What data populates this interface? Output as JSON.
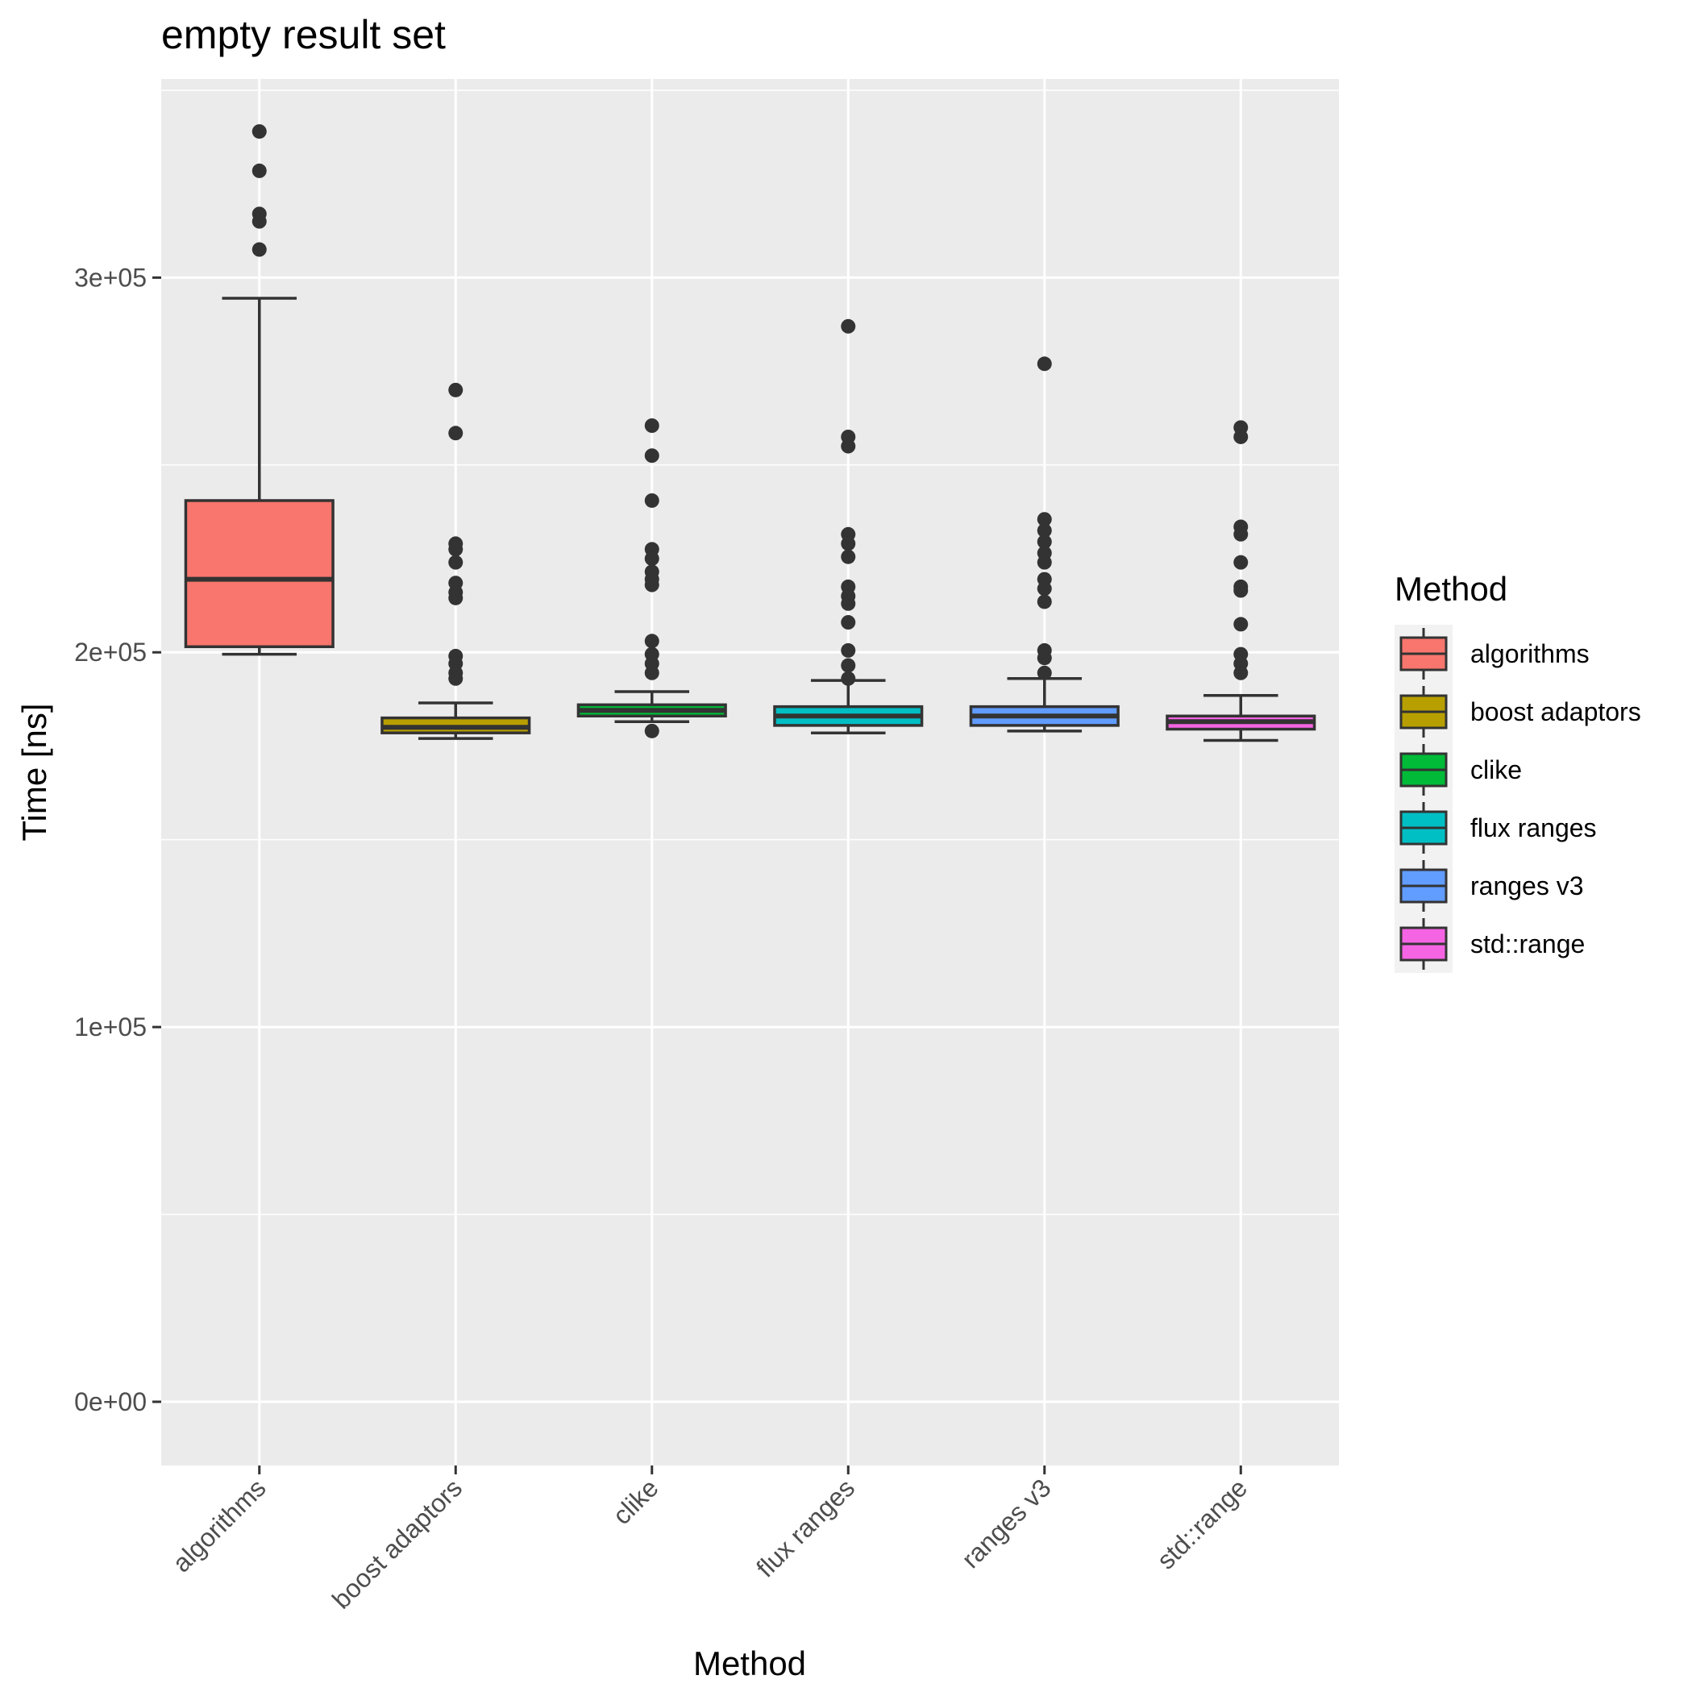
{
  "chart_data": {
    "type": "boxplot",
    "title": "empty result set",
    "xlabel": "Method",
    "ylabel": "Time [ns]",
    "ylim": [
      -17000,
      353000
    ],
    "y_ticks": [
      0,
      100000,
      200000,
      300000
    ],
    "y_tick_labels": [
      "0e+00",
      "1e+05",
      "2e+05",
      "3e+05"
    ],
    "grid": true,
    "legend": {
      "title": "Method",
      "position": "right"
    },
    "categories": [
      "algorithms",
      "boost adaptors",
      "clike",
      "flux ranges",
      "ranges v3",
      "std::range"
    ],
    "series": [
      {
        "name": "algorithms",
        "color": "#F8766D",
        "whisker_low": 199500,
        "q1": 201500,
        "median": 219500,
        "q3": 240500,
        "whisker_high": 294500,
        "outliers": [
          339000,
          328500,
          317000,
          315000,
          307500
        ]
      },
      {
        "name": "boost adaptors",
        "color": "#B79F00",
        "whisker_low": 177000,
        "q1": 178500,
        "median": 180000,
        "q3": 182500,
        "whisker_high": 186500,
        "outliers": [
          270000,
          258500,
          229000,
          227500,
          224000,
          218500,
          216000,
          214500,
          199000,
          197000,
          194500,
          193000
        ]
      },
      {
        "name": "clike",
        "color": "#00BA38",
        "whisker_low": 181500,
        "q1": 183000,
        "median": 184500,
        "q3": 186000,
        "whisker_high": 189500,
        "outliers": [
          260500,
          252500,
          240500,
          227500,
          225000,
          221500,
          219500,
          218000,
          203000,
          199500,
          197000,
          194500,
          179000
        ]
      },
      {
        "name": "flux ranges",
        "color": "#00BFC4",
        "whisker_low": 178500,
        "q1": 180500,
        "median": 183000,
        "q3": 185500,
        "whisker_high": 192500,
        "outliers": [
          287000,
          257500,
          255000,
          231500,
          229000,
          225500,
          217500,
          215000,
          213000,
          208000,
          200500,
          196500,
          193000
        ]
      },
      {
        "name": "ranges v3",
        "color": "#619CFF",
        "whisker_low": 179000,
        "q1": 180500,
        "median": 183000,
        "q3": 185500,
        "whisker_high": 193000,
        "outliers": [
          277000,
          235500,
          232500,
          229500,
          226500,
          224000,
          219500,
          217000,
          213500,
          200500,
          198500,
          194500
        ]
      },
      {
        "name": "std::range",
        "color": "#F564E3",
        "whisker_low": 176500,
        "q1": 179500,
        "median": 181500,
        "q3": 183000,
        "whisker_high": 188500,
        "outliers": [
          260000,
          257500,
          233500,
          231500,
          224000,
          217500,
          216500,
          207500,
          199500,
          197000,
          194500
        ]
      }
    ]
  }
}
